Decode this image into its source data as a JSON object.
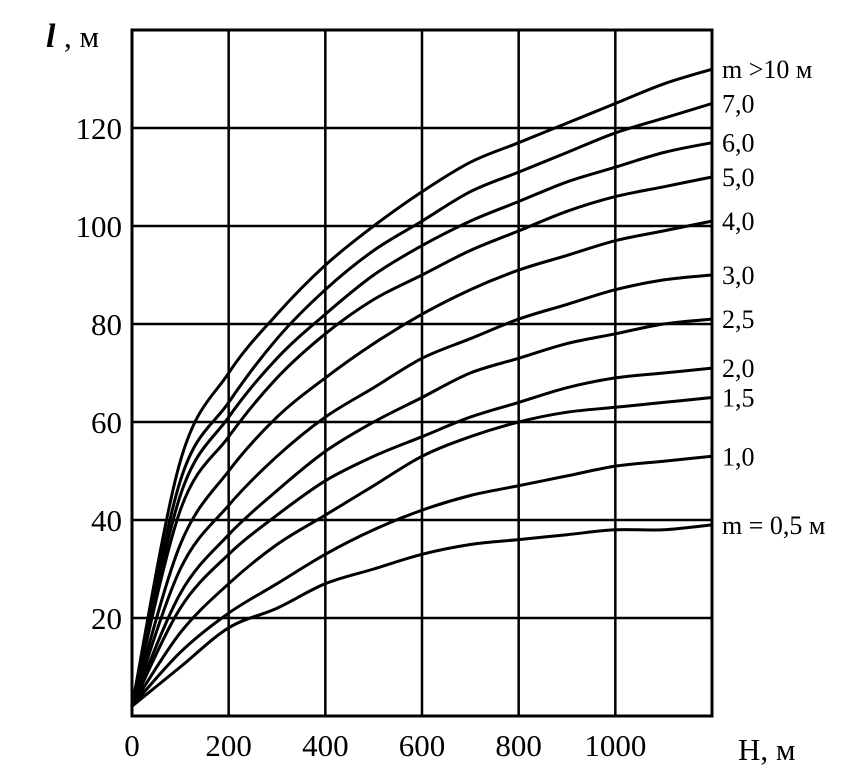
{
  "chart_data": {
    "type": "line",
    "title": "",
    "ylabel_symbol": "l",
    "ylabel_unit": ", м",
    "xlabel": "Н, м",
    "xlim": [
      0,
      1200
    ],
    "ylim": [
      0,
      140
    ],
    "x_ticks": [
      0,
      200,
      400,
      600,
      800,
      1000
    ],
    "x_tick_labels": [
      "0",
      "200",
      "400",
      "600",
      "800",
      "1000"
    ],
    "y_ticks": [
      20,
      40,
      60,
      80,
      100,
      120
    ],
    "y_tick_labels": [
      "20",
      "40",
      "60",
      "80",
      "100",
      "120"
    ],
    "grid": true,
    "legend": "series labels at right end of curves",
    "x": [
      0,
      100,
      200,
      300,
      400,
      500,
      600,
      700,
      800,
      900,
      1000,
      1100,
      1200
    ],
    "series": [
      {
        "name": "m >10 м",
        "values": [
          2,
          52,
          70,
          82,
          92,
          100,
          107,
          113,
          117,
          121,
          125,
          129,
          132
        ]
      },
      {
        "name": "7,0",
        "values": [
          2,
          48,
          64,
          77,
          87,
          95,
          101,
          107,
          111,
          115,
          119,
          122,
          125
        ]
      },
      {
        "name": "6,0",
        "values": [
          2,
          45,
          61,
          73,
          82,
          90,
          96,
          101,
          105,
          109,
          112,
          115,
          117
        ]
      },
      {
        "name": "5,0",
        "values": [
          2,
          42,
          57,
          69,
          78,
          85,
          90,
          95,
          99,
          103,
          106,
          108,
          110
        ]
      },
      {
        "name": "4,0",
        "values": [
          2,
          35,
          50,
          61,
          69,
          76,
          82,
          87,
          91,
          94,
          97,
          99,
          101
        ]
      },
      {
        "name": "3,0",
        "values": [
          2,
          30,
          43,
          53,
          61,
          67,
          73,
          77,
          81,
          84,
          87,
          89,
          90
        ]
      },
      {
        "name": "2,5",
        "values": [
          2,
          25,
          37,
          46,
          54,
          60,
          65,
          70,
          73,
          76,
          78,
          80,
          81
        ]
      },
      {
        "name": "2,0",
        "values": [
          2,
          22,
          33,
          41,
          48,
          53,
          57,
          61,
          64,
          67,
          69,
          70,
          71
        ]
      },
      {
        "name": "1,5",
        "values": [
          2,
          17,
          27,
          35,
          41,
          47,
          53,
          57,
          60,
          62,
          63,
          64,
          65
        ]
      },
      {
        "name": "1,0",
        "values": [
          2,
          13,
          21,
          27,
          33,
          38,
          42,
          45,
          47,
          49,
          51,
          52,
          53
        ]
      },
      {
        "name": "m = 0,5 м",
        "values": [
          2,
          10,
          18,
          22,
          27,
          30,
          33,
          35,
          36,
          37,
          38,
          38,
          39
        ]
      }
    ]
  }
}
